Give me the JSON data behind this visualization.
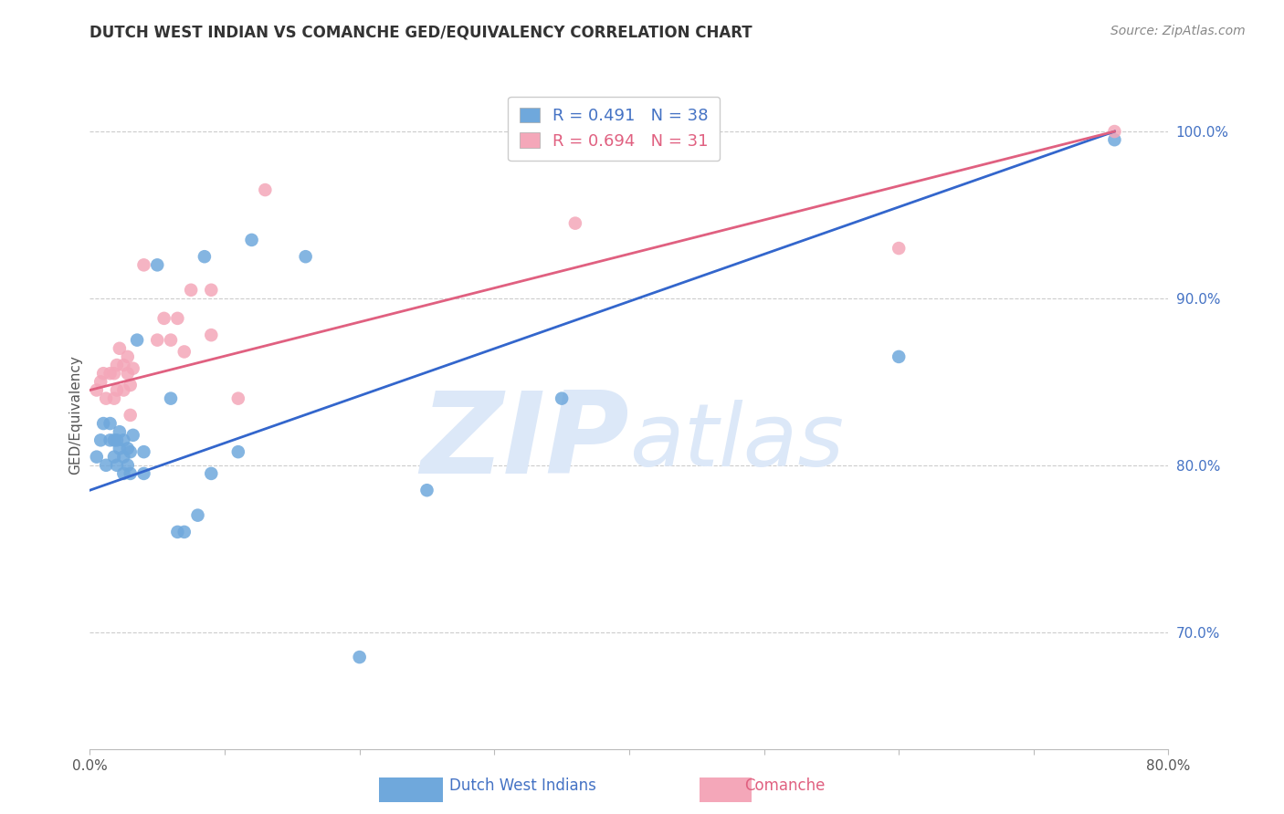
{
  "title": "DUTCH WEST INDIAN VS COMANCHE GED/EQUIVALENCY CORRELATION CHART",
  "source": "Source: ZipAtlas.com",
  "ylabel_left": "GED/Equivalency",
  "legend_blue_label": "Dutch West Indians",
  "legend_pink_label": "Comanche",
  "blue_r": "0.491",
  "blue_n": "38",
  "pink_r": "0.694",
  "pink_n": "31",
  "xlim": [
    0.0,
    0.8
  ],
  "ylim": [
    0.63,
    1.03
  ],
  "x_ticks": [
    0.0,
    0.1,
    0.2,
    0.3,
    0.4,
    0.5,
    0.6,
    0.7,
    0.8
  ],
  "y_ticks_right": [
    0.7,
    0.8,
    0.9,
    1.0
  ],
  "y_tick_labels_right": [
    "70.0%",
    "80.0%",
    "90.0%",
    "100.0%"
  ],
  "blue_color": "#6fa8dc",
  "blue_line_color": "#3366cc",
  "pink_color": "#f4a7b9",
  "pink_line_color": "#e06080",
  "watermark_color": "#dce8f8",
  "blue_line_x0": 0.0,
  "blue_line_y0": 0.785,
  "blue_line_x1": 0.76,
  "blue_line_y1": 1.0,
  "pink_line_x0": 0.0,
  "pink_line_y0": 0.845,
  "pink_line_x1": 0.76,
  "pink_line_y1": 1.0,
  "blue_x": [
    0.005,
    0.008,
    0.01,
    0.012,
    0.015,
    0.015,
    0.018,
    0.018,
    0.02,
    0.02,
    0.022,
    0.022,
    0.025,
    0.025,
    0.025,
    0.028,
    0.028,
    0.03,
    0.03,
    0.032,
    0.035,
    0.04,
    0.04,
    0.05,
    0.06,
    0.065,
    0.07,
    0.08,
    0.085,
    0.09,
    0.11,
    0.12,
    0.16,
    0.2,
    0.25,
    0.35,
    0.6,
    0.76
  ],
  "blue_y": [
    0.805,
    0.815,
    0.825,
    0.8,
    0.815,
    0.825,
    0.805,
    0.815,
    0.8,
    0.815,
    0.81,
    0.82,
    0.795,
    0.805,
    0.815,
    0.8,
    0.81,
    0.795,
    0.808,
    0.818,
    0.875,
    0.795,
    0.808,
    0.92,
    0.84,
    0.76,
    0.76,
    0.77,
    0.925,
    0.795,
    0.808,
    0.935,
    0.925,
    0.685,
    0.785,
    0.84,
    0.865,
    0.995
  ],
  "pink_x": [
    0.005,
    0.008,
    0.01,
    0.012,
    0.015,
    0.018,
    0.018,
    0.02,
    0.02,
    0.022,
    0.025,
    0.025,
    0.028,
    0.028,
    0.03,
    0.03,
    0.032,
    0.04,
    0.05,
    0.055,
    0.06,
    0.065,
    0.07,
    0.075,
    0.09,
    0.09,
    0.11,
    0.13,
    0.36,
    0.6,
    0.76
  ],
  "pink_y": [
    0.845,
    0.85,
    0.855,
    0.84,
    0.855,
    0.84,
    0.855,
    0.845,
    0.86,
    0.87,
    0.845,
    0.86,
    0.855,
    0.865,
    0.83,
    0.848,
    0.858,
    0.92,
    0.875,
    0.888,
    0.875,
    0.888,
    0.868,
    0.905,
    0.878,
    0.905,
    0.84,
    0.965,
    0.945,
    0.93,
    1.0
  ]
}
